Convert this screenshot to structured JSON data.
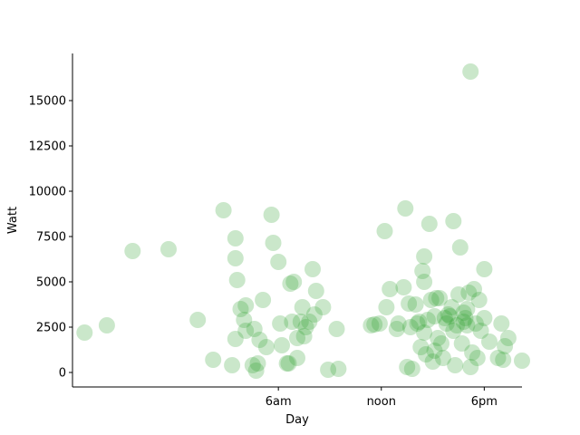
{
  "chart_data": {
    "type": "scatter",
    "xlabel": "Day",
    "ylabel": "Watt",
    "x_unit": "hours since midnight",
    "xlim": [
      -6.0,
      20.2
    ],
    "ylim": [
      -800,
      17600
    ],
    "x_ticks": [
      {
        "value": 6,
        "label": "6am"
      },
      {
        "value": 12,
        "label": "noon"
      },
      {
        "value": 18,
        "label": "6pm"
      }
    ],
    "y_ticks": [
      {
        "value": 0,
        "label": "0"
      },
      {
        "value": 2500,
        "label": "2500"
      },
      {
        "value": 5000,
        "label": "5000"
      },
      {
        "value": 7500,
        "label": "7500"
      },
      {
        "value": 10000,
        "label": "10000"
      },
      {
        "value": 12500,
        "label": "12500"
      },
      {
        "value": 15000,
        "label": "15000"
      }
    ],
    "grid": false,
    "legend": "none",
    "marker_color": "#2ca02c",
    "marker_alpha": 0.25,
    "points": [
      [
        -5.3,
        2200
      ],
      [
        -4.0,
        2600
      ],
      [
        -2.5,
        6700
      ],
      [
        -0.4,
        6800
      ],
      [
        1.3,
        2900
      ],
      [
        2.2,
        700
      ],
      [
        2.8,
        8950
      ],
      [
        3.3,
        400
      ],
      [
        3.5,
        7400
      ],
      [
        3.5,
        1850
      ],
      [
        3.5,
        6300
      ],
      [
        3.6,
        5100
      ],
      [
        3.8,
        3500
      ],
      [
        4.0,
        2900
      ],
      [
        4.1,
        3700
      ],
      [
        4.1,
        2300
      ],
      [
        4.5,
        400
      ],
      [
        4.6,
        2400
      ],
      [
        4.7,
        100
      ],
      [
        4.8,
        500
      ],
      [
        4.9,
        1800
      ],
      [
        5.1,
        4000
      ],
      [
        5.3,
        1400
      ],
      [
        5.6,
        8700
      ],
      [
        5.7,
        7150
      ],
      [
        6.0,
        6100
      ],
      [
        6.1,
        2700
      ],
      [
        6.2,
        1500
      ],
      [
        6.5,
        500
      ],
      [
        6.6,
        500
      ],
      [
        6.7,
        4900
      ],
      [
        6.8,
        2800
      ],
      [
        6.9,
        5000
      ],
      [
        7.1,
        800
      ],
      [
        7.1,
        1900
      ],
      [
        7.3,
        2800
      ],
      [
        7.4,
        3600
      ],
      [
        7.5,
        2000
      ],
      [
        7.6,
        2500
      ],
      [
        7.8,
        2800
      ],
      [
        8.0,
        5700
      ],
      [
        8.1,
        3200
      ],
      [
        8.2,
        4500
      ],
      [
        8.6,
        3600
      ],
      [
        8.9,
        150
      ],
      [
        9.4,
        2400
      ],
      [
        9.5,
        200
      ],
      [
        11.4,
        2600
      ],
      [
        11.6,
        2650
      ],
      [
        11.9,
        2700
      ],
      [
        12.2,
        7800
      ],
      [
        12.3,
        3600
      ],
      [
        12.5,
        4600
      ],
      [
        12.9,
        2400
      ],
      [
        13.0,
        2700
      ],
      [
        13.3,
        4700
      ],
      [
        13.4,
        9050
      ],
      [
        13.5,
        300
      ],
      [
        13.6,
        3800
      ],
      [
        13.7,
        2500
      ],
      [
        13.8,
        200
      ],
      [
        14.0,
        3750
      ],
      [
        14.1,
        2700
      ],
      [
        14.2,
        2800
      ],
      [
        14.3,
        1400
      ],
      [
        14.4,
        5600
      ],
      [
        14.5,
        2200
      ],
      [
        14.5,
        6400
      ],
      [
        14.5,
        5000
      ],
      [
        14.6,
        1000
      ],
      [
        14.7,
        2900
      ],
      [
        14.8,
        8200
      ],
      [
        14.9,
        4000
      ],
      [
        15.0,
        600
      ],
      [
        15.1,
        1200
      ],
      [
        15.1,
        3100
      ],
      [
        15.2,
        4100
      ],
      [
        15.3,
        1900
      ],
      [
        15.4,
        4100
      ],
      [
        15.5,
        1600
      ],
      [
        15.6,
        800
      ],
      [
        15.7,
        3000
      ],
      [
        15.8,
        2700
      ],
      [
        15.9,
        3200
      ],
      [
        16.0,
        3100
      ],
      [
        16.1,
        3600
      ],
      [
        16.2,
        8350
      ],
      [
        16.2,
        2300
      ],
      [
        16.3,
        400
      ],
      [
        16.4,
        2600
      ],
      [
        16.5,
        4300
      ],
      [
        16.6,
        6900
      ],
      [
        16.7,
        1600
      ],
      [
        16.8,
        3300
      ],
      [
        16.8,
        2800
      ],
      [
        16.9,
        3000
      ],
      [
        17.0,
        3500
      ],
      [
        17.0,
        2600
      ],
      [
        17.1,
        4400
      ],
      [
        17.2,
        300
      ],
      [
        17.2,
        16600
      ],
      [
        17.3,
        1100
      ],
      [
        17.4,
        4600
      ],
      [
        17.5,
        2700
      ],
      [
        17.6,
        800
      ],
      [
        17.7,
        4000
      ],
      [
        17.8,
        2300
      ],
      [
        18.0,
        5700
      ],
      [
        18.0,
        3000
      ],
      [
        18.3,
        1700
      ],
      [
        18.8,
        800
      ],
      [
        19.0,
        2700
      ],
      [
        19.1,
        700
      ],
      [
        19.2,
        1450
      ],
      [
        19.4,
        1900
      ],
      [
        20.2,
        650
      ]
    ]
  }
}
